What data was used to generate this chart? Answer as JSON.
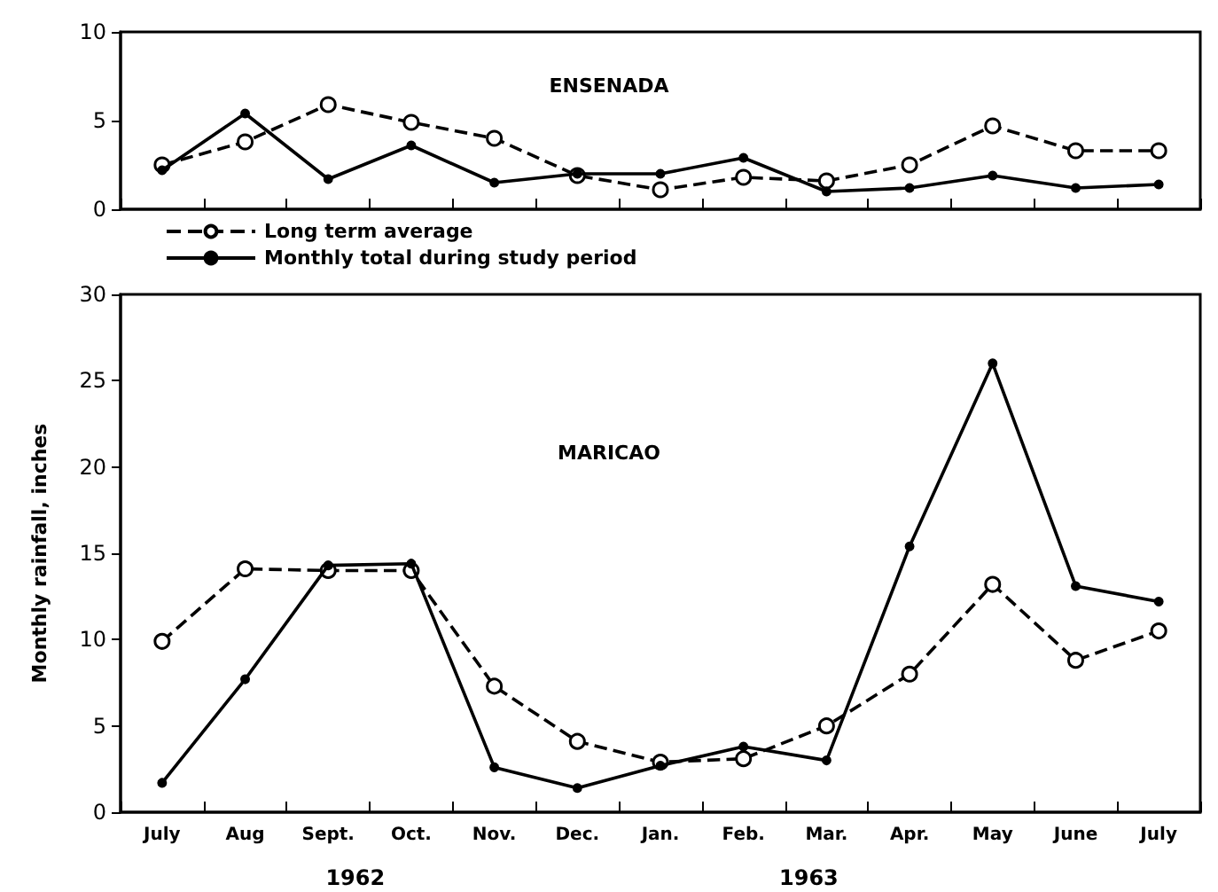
{
  "chart_data": [
    {
      "type": "line",
      "title": "ENSENADA",
      "categories": [
        null,
        null,
        null,
        null,
        null,
        null,
        null,
        null,
        null,
        null,
        null,
        null,
        null
      ],
      "series": [
        {
          "name": "Long term average",
          "color": "#000000",
          "marker": "circle",
          "line_style": "dashed",
          "values": [
            2.5,
            3.8,
            5.9,
            4.9,
            4.0,
            1.9,
            1.1,
            1.8,
            1.6,
            2.5,
            4.7,
            3.3,
            3.3
          ]
        },
        {
          "name": "Monthly total during study period",
          "color": "#000000",
          "marker": "circle",
          "line_style": "solid",
          "values": [
            2.2,
            5.4,
            1.7,
            3.6,
            1.5,
            2.0,
            2.0,
            2.9,
            1.0,
            1.2,
            1.9,
            1.2,
            1.4
          ]
        }
      ],
      "ylim": [
        0,
        10
      ],
      "yticks": [
        0,
        5,
        10
      ],
      "grid": false,
      "legend": "bottom",
      "tick_labels": "y"
    },
    {
      "type": "line",
      "title": "MARICAO",
      "ylabel": "Monthly rainfall, inches",
      "categories": [
        "July",
        "Aug",
        "Sept.",
        "Oct.",
        "Nov.",
        "Dec.",
        "Jan.",
        "Feb.",
        "Mar.",
        "Apr.",
        "May",
        "June",
        "July"
      ],
      "series": [
        {
          "color": "#000000",
          "marker": "circle",
          "line_style": "dashed",
          "values": [
            9.9,
            14.1,
            14.0,
            14.0,
            7.3,
            4.1,
            2.9,
            3.1,
            5.0,
            8.0,
            13.2,
            8.8,
            10.5
          ]
        },
        {
          "color": "#000000",
          "marker": "circle",
          "line_style": "solid",
          "values": [
            1.7,
            7.7,
            14.3,
            14.4,
            2.6,
            1.4,
            2.7,
            3.8,
            3.0,
            15.4,
            26.0,
            13.1,
            12.2
          ]
        }
      ],
      "ylim": [
        0,
        30
      ],
      "yticks": [
        0,
        5,
        10,
        15,
        20,
        25,
        30
      ],
      "grid": false,
      "legend": false,
      "annotations": [
        "1962",
        "1963"
      ]
    }
  ]
}
